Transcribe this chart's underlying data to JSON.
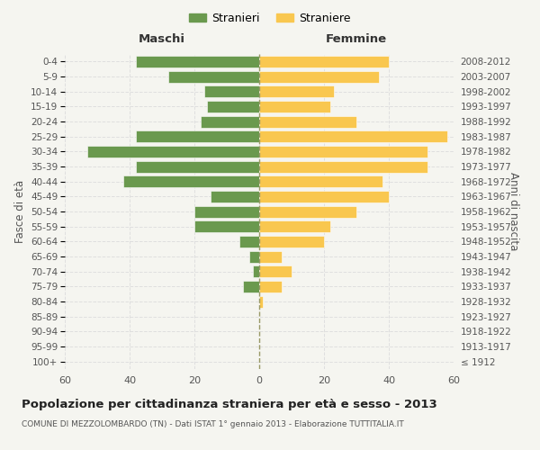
{
  "age_groups": [
    "100+",
    "95-99",
    "90-94",
    "85-89",
    "80-84",
    "75-79",
    "70-74",
    "65-69",
    "60-64",
    "55-59",
    "50-54",
    "45-49",
    "40-44",
    "35-39",
    "30-34",
    "25-29",
    "20-24",
    "15-19",
    "10-14",
    "5-9",
    "0-4"
  ],
  "birth_years": [
    "≤ 1912",
    "1913-1917",
    "1918-1922",
    "1923-1927",
    "1928-1932",
    "1933-1937",
    "1938-1942",
    "1943-1947",
    "1948-1952",
    "1953-1957",
    "1958-1962",
    "1963-1967",
    "1968-1972",
    "1973-1977",
    "1978-1982",
    "1983-1987",
    "1988-1992",
    "1993-1997",
    "1998-2002",
    "2003-2007",
    "2008-2012"
  ],
  "males": [
    0,
    0,
    0,
    0,
    0,
    5,
    2,
    3,
    6,
    20,
    20,
    15,
    42,
    38,
    53,
    38,
    18,
    16,
    17,
    28,
    38
  ],
  "females": [
    0,
    0,
    0,
    0,
    1,
    7,
    10,
    7,
    20,
    22,
    30,
    40,
    38,
    52,
    52,
    58,
    30,
    22,
    23,
    37,
    40
  ],
  "male_color": "#6a994e",
  "female_color": "#f9c74f",
  "background_color": "#f5f5f0",
  "bar_edge_color": "white",
  "title": "Popolazione per cittadinanza straniera per età e sesso - 2013",
  "subtitle": "COMUNE DI MEZZOLOMBARDO (TN) - Dati ISTAT 1° gennaio 2013 - Elaborazione TUTTITALIA.IT",
  "left_label": "Maschi",
  "right_label": "Femmine",
  "y_label_left": "Fasce di età",
  "y_label_right": "Anni di nascita",
  "legend_male": "Stranieri",
  "legend_female": "Straniere",
  "xlim": 60,
  "grid_color": "#dddddd"
}
